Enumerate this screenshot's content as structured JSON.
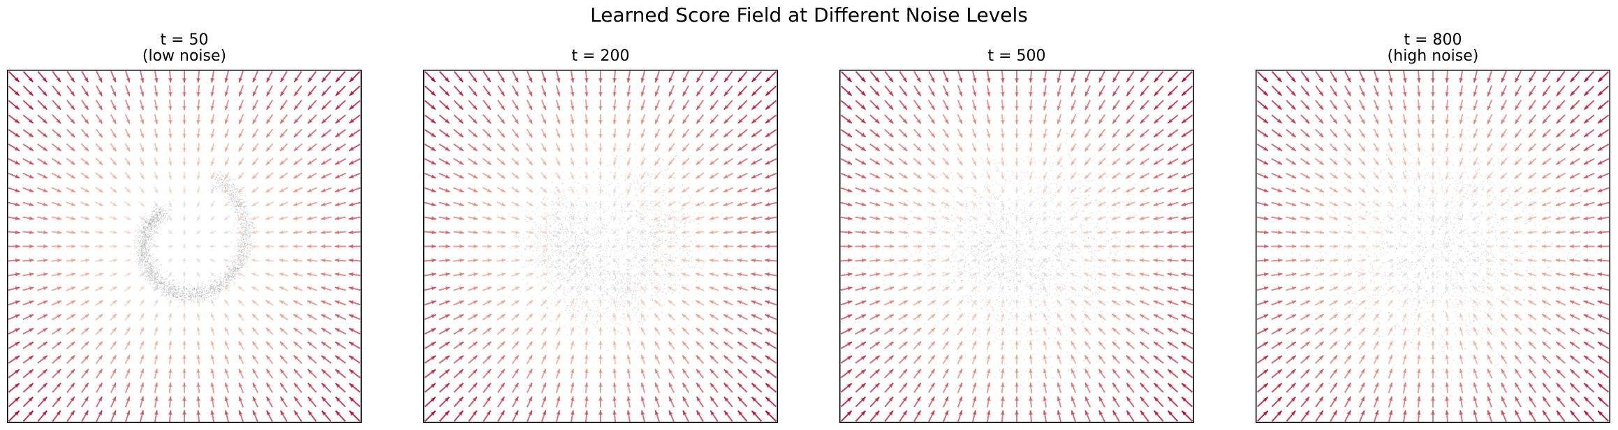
{
  "figure": {
    "title": "Learned Score Field at Different Noise Levels"
  },
  "chart_data": [
    {
      "type": "quiver",
      "title_lines": [
        "t = 50",
        "(low noise)"
      ],
      "noise_timestep": 50,
      "xlabel": "",
      "ylabel": "",
      "axes_visible": false,
      "arrow_grid": 25,
      "data_distribution": "swiss-roll spiral (sharp)",
      "colormap": [
        "#3b4cc0",
        "#b4d0fb",
        "#f0c8b1",
        "#e88d70",
        "#c43a4a",
        "#b40426"
      ]
    },
    {
      "type": "quiver",
      "title_lines": [
        "t = 200"
      ],
      "noise_timestep": 200,
      "xlabel": "",
      "ylabel": "",
      "axes_visible": false,
      "arrow_grid": 25,
      "data_distribution": "blurred spiral",
      "colormap": [
        "#3b4cc0",
        "#b4d0fb",
        "#f0c8b1",
        "#e88d70",
        "#c43a4a",
        "#b40426"
      ]
    },
    {
      "type": "quiver",
      "title_lines": [
        "t = 500"
      ],
      "noise_timestep": 500,
      "xlabel": "",
      "ylabel": "",
      "axes_visible": false,
      "arrow_grid": 25,
      "data_distribution": "near-gaussian cloud",
      "colormap": [
        "#3b4cc0",
        "#b4d0fb",
        "#f0c8b1",
        "#e88d70",
        "#c43a4a",
        "#b40426"
      ]
    },
    {
      "type": "quiver",
      "title_lines": [
        "t = 800",
        "(high noise)"
      ],
      "noise_timestep": 800,
      "xlabel": "",
      "ylabel": "",
      "axes_visible": false,
      "arrow_grid": 25,
      "data_distribution": "gaussian cloud",
      "colormap": [
        "#3b4cc0",
        "#b4d0fb",
        "#f0c8b1",
        "#e88d70",
        "#c43a4a",
        "#b40426"
      ]
    }
  ]
}
